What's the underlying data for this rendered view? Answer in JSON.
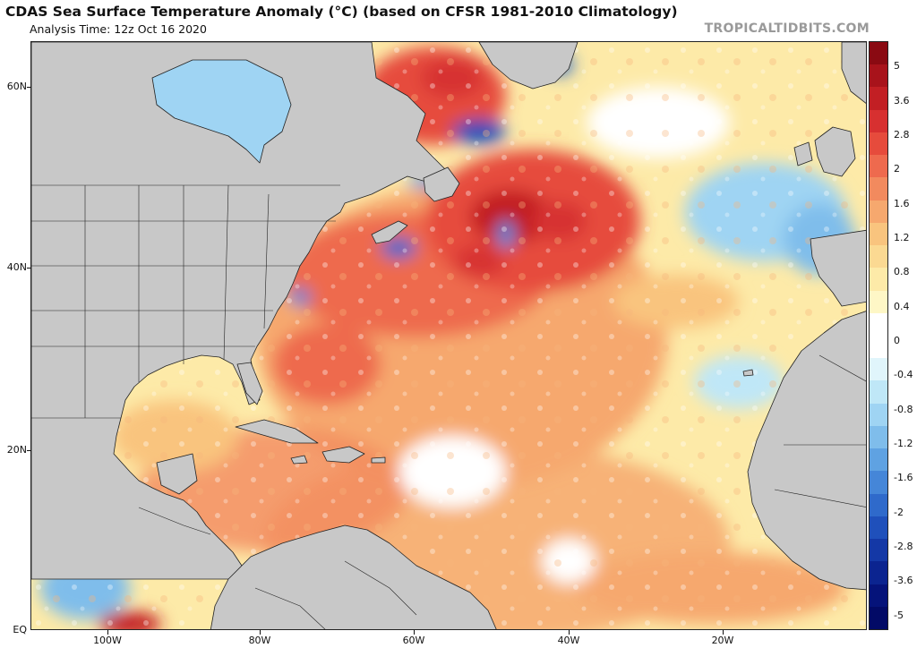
{
  "header": {
    "title": "CDAS Sea Surface Temperature Anomaly (°C) (based on CFSR 1981-2010 Climatology)",
    "subtitle": "Analysis Time: 12z Oct 16 2020",
    "brand": "TROPICALTIDBITS.COM"
  },
  "map": {
    "lat_labels": [
      "60N",
      "40N",
      "20N",
      "EQ"
    ],
    "lon_labels": [
      "100W",
      "80W",
      "60W",
      "40W",
      "20W"
    ],
    "land_color": "#c8c8c8",
    "border_color": "#222222"
  },
  "colorbar": {
    "labels": [
      "5",
      "3.6",
      "2.8",
      "2",
      "1.6",
      "1.2",
      "0.8",
      "0.4",
      "0",
      "-0.4",
      "-0.8",
      "-1.2",
      "-1.6",
      "-2",
      "-2.8",
      "-3.6",
      "-5"
    ],
    "colors": [
      "#8a0a12",
      "#a8131b",
      "#c21f24",
      "#d73030",
      "#e64b3c",
      "#ee6a4e",
      "#f28a5e",
      "#f6a86e",
      "#f9c47e",
      "#fbd992",
      "#fdeaa8",
      "#fef7c6",
      "#ffffff",
      "#ffffff",
      "#e0f5fb",
      "#bfe7f7",
      "#9fd4f3",
      "#7fbdeb",
      "#5fa2e2",
      "#4586d8",
      "#2f6acb",
      "#1f50bb",
      "#1438a6",
      "#0b2490",
      "#05137a",
      "#020a66"
    ]
  }
}
